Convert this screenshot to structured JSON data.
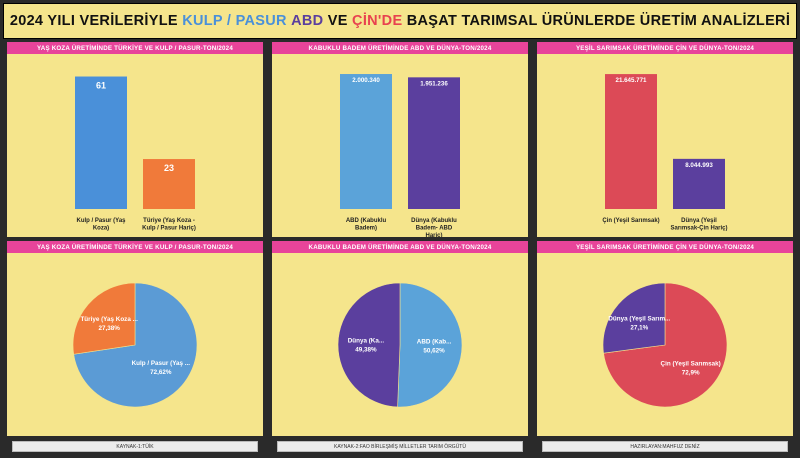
{
  "title": {
    "parts": [
      {
        "text": "2024 YILI VERİLERİYLE ",
        "color": "#111111"
      },
      {
        "text": "KULP / PASUR",
        "color": "#4a90d9"
      },
      {
        "text": " ",
        "color": "#111111"
      },
      {
        "text": "ABD",
        "color": "#5b3f9e"
      },
      {
        "text": " VE ",
        "color": "#111111"
      },
      {
        "text": "ÇİN'DE",
        "color": "#e8424f"
      },
      {
        "text": " BAŞAT TARIMSAL ÜRÜNLERDE ÜRETİM ANALİZLERİ",
        "color": "#111111"
      }
    ]
  },
  "chart_data": [
    {
      "type": "bar",
      "title": "YAŞ KOZA ÜRETİMİNDE TÜRKİYE VE KULP / PASUR-TON/2024",
      "categories": [
        "Kulp / Pasur (Yaş Koza)",
        "Türiye (Yaş Koza - Kulp / Pasur Hariç)"
      ],
      "category_lines": [
        [
          "Kulp / Pasur (Yaş",
          "Koza)"
        ],
        [
          "Türiye (Yaş Koza -",
          "Kulp / Pasur Hariç)"
        ]
      ],
      "values": [
        61,
        23
      ],
      "value_labels": [
        "61",
        "23"
      ],
      "colors": [
        "#4a90d9",
        "#f07a3a"
      ],
      "label_color": "#ffffff",
      "ylim": [
        0,
        64
      ]
    },
    {
      "type": "bar",
      "title": "KABUKLU BADEM ÜRETİMİNDE ABD VE DÜNYA-TON/2024",
      "categories": [
        "ABD (Kabuklu Badem)",
        "Dünya (Kabuklu Badem- ABD Hariç)"
      ],
      "category_lines": [
        [
          "ABD (Kabuklu",
          "Badem)"
        ],
        [
          "Dünya (Kabuklu",
          "Badem- ABD",
          "Hariç)"
        ]
      ],
      "values": [
        2000340,
        1951236
      ],
      "value_labels": [
        "2.000.340",
        "1.951.236"
      ],
      "colors": [
        "#5ba3d9",
        "#5b3f9e"
      ],
      "label_color": "#ffffff",
      "ylim": [
        0,
        2060000
      ]
    },
    {
      "type": "bar",
      "title": "YEŞİL SARIMSAK ÜRETİMİNDE ÇİN VE DÜNYA-TON/2024",
      "categories": [
        "Çin (Yeşil Sarımsak)",
        "Dünya (Yeşil Sarımsak-Çin Hariç)"
      ],
      "category_lines": [
        [
          "Çin (Yeşil Sarımsak)"
        ],
        [
          "Dünya (Yeşil",
          "Sarımsak-Çin Hariç)"
        ]
      ],
      "values": [
        21645771,
        8044993
      ],
      "value_labels": [
        "21.645.771",
        "8.044.993"
      ],
      "colors": [
        "#dc4a57",
        "#5b3f9e"
      ],
      "label_color": "#ffffff",
      "ylim": [
        0,
        22300000
      ]
    },
    {
      "type": "pie",
      "title": "YAŞ KOZA ÜRETİMİNDE TÜRKİYE VE KULP / PASUR-TON/2024",
      "slices": [
        {
          "label": "Kulp / Pasur (Yaş ...",
          "pct_label": "72,62%",
          "value": 72.62,
          "color": "#5b9bd5"
        },
        {
          "label": "Türiye (Yaş Koza ...",
          "pct_label": "27,38%",
          "value": 27.38,
          "color": "#f07a3a"
        }
      ]
    },
    {
      "type": "pie",
      "title": "KABUKLU BADEM ÜRETİMİNDE ABD VE DÜNYA-TON/2024",
      "slices": [
        {
          "label": "ABD (Kab...",
          "pct_label": "50,62%",
          "value": 50.62,
          "color": "#5ba3d9"
        },
        {
          "label": "Dünya (Ka...",
          "pct_label": "49,38%",
          "value": 49.38,
          "color": "#5b3f9e"
        }
      ]
    },
    {
      "type": "pie",
      "title": "YEŞİL SARIMSAK ÜRETİMİNDE ÇİN VE DÜNYA-TON/2024",
      "slices": [
        {
          "label": "Çin (Yeşil Sarımsak)",
          "pct_label": "72,9%",
          "value": 72.9,
          "color": "#dc4a57"
        },
        {
          "label": "Dünya (Yeşil Sarım...",
          "pct_label": "27,1%",
          "value": 27.1,
          "color": "#5b3f9e"
        }
      ]
    }
  ],
  "footers": [
    "KAYNAK-1:TÜİK",
    "KAYNAK-2:FAO BİRLEŞMİŞ MİLLETLER  TARIM ÖRGÜTÜ",
    "HAZIRLAYAN:MAHFUZ DENİZ"
  ]
}
